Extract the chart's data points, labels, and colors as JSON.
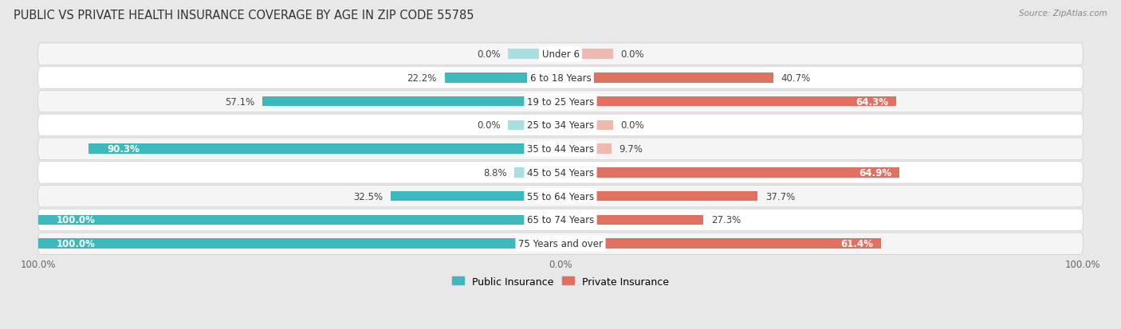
{
  "title": "PUBLIC VS PRIVATE HEALTH INSURANCE COVERAGE BY AGE IN ZIP CODE 55785",
  "source_text": "Source: ZipAtlas.com",
  "categories": [
    "Under 6",
    "6 to 18 Years",
    "19 to 25 Years",
    "25 to 34 Years",
    "35 to 44 Years",
    "45 to 54 Years",
    "55 to 64 Years",
    "65 to 74 Years",
    "75 Years and over"
  ],
  "public_values": [
    0.0,
    22.2,
    57.1,
    0.0,
    90.3,
    8.8,
    32.5,
    100.0,
    100.0
  ],
  "private_values": [
    0.0,
    40.7,
    64.3,
    0.0,
    9.7,
    64.9,
    37.7,
    27.3,
    61.4
  ],
  "public_color": "#3db8bc",
  "public_color_light": "#a8dfe1",
  "private_color": "#e07060",
  "private_color_light": "#f0b8ae",
  "bar_height": 0.42,
  "bg_color": "#e8e8e8",
  "row_bg_odd": "#f5f5f5",
  "row_bg_even": "#ffffff",
  "label_fontsize": 8.5,
  "title_fontsize": 10.5,
  "axis_label_fontsize": 8.5,
  "legend_fontsize": 9,
  "x_axis_labels": [
    "100.0%",
    "0.0%",
    "100.0%"
  ]
}
